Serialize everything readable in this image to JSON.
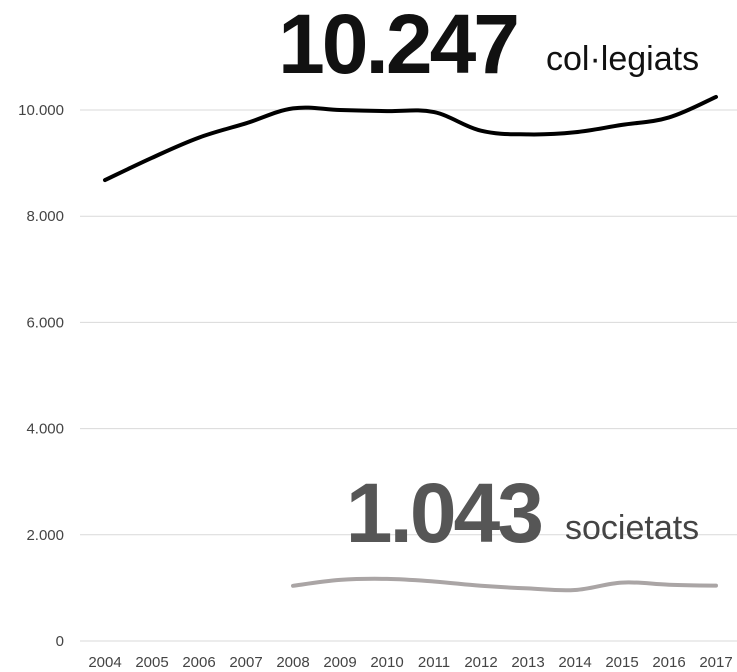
{
  "chart_data": {
    "type": "line",
    "x": [
      "2004",
      "2005",
      "2006",
      "2007",
      "2008",
      "2009",
      "2010",
      "2011",
      "2012",
      "2013",
      "2014",
      "2015",
      "2016",
      "2017"
    ],
    "ylim": [
      0,
      10500
    ],
    "yticks": [
      0,
      2000,
      4000,
      6000,
      8000,
      10000
    ],
    "ytick_labels": [
      "0",
      "2.000",
      "4.000",
      "6.000",
      "8.000",
      "10.000"
    ],
    "grid": "horizontal",
    "series": [
      {
        "color": "#000000",
        "values": [
          8680,
          9100,
          9480,
          9750,
          10030,
          10000,
          9980,
          9960,
          9610,
          9540,
          9580,
          9720,
          9860,
          10247
        ]
      },
      {
        "color": "#aaa5a5",
        "values": [
          null,
          null,
          null,
          null,
          1040,
          1150,
          1170,
          1120,
          1040,
          990,
          960,
          1100,
          1060,
          1043
        ]
      }
    ],
    "annotations": [
      {
        "number": "10.247",
        "label": "col·legiats",
        "number_color": "#111111",
        "label_color": "#111111"
      },
      {
        "number": "1.043",
        "label": "societats",
        "number_color": "#565656",
        "label_color": "#444444"
      }
    ]
  }
}
